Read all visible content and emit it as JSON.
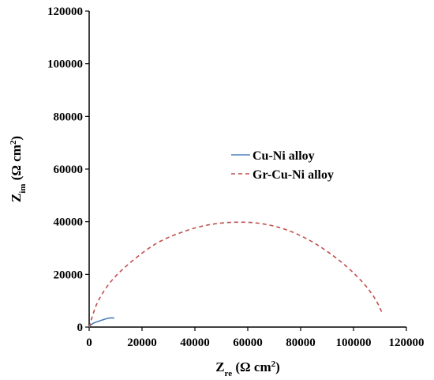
{
  "chart_data": {
    "type": "line",
    "title": "",
    "xlabel": {
      "main": "Z",
      "sub": "re",
      "unit": "(Ω cm",
      "sup": "2",
      "close": ")"
    },
    "ylabel": {
      "main": "Z",
      "sub": "im",
      "unit": "(Ω cm",
      "sup": "2",
      "close": ")"
    },
    "xlim": [
      0,
      120000
    ],
    "ylim": [
      0,
      120000
    ],
    "x_ticks": [
      0,
      20000,
      40000,
      60000,
      80000,
      100000,
      120000
    ],
    "y_ticks": [
      0,
      20000,
      40000,
      60000,
      80000,
      100000,
      120000
    ],
    "x_tick_labels": [
      "0",
      "20000",
      "40000",
      "60000",
      "80000",
      "100000",
      "120000"
    ],
    "y_tick_labels": [
      "0",
      "20000",
      "40000",
      "60000",
      "80000",
      "100000",
      "120000"
    ],
    "grid": false,
    "legend_position": "center-right",
    "series": [
      {
        "name": "Cu-Ni alloy",
        "color": "#4a7ebb",
        "style": "solid",
        "points": [
          [
            0,
            0
          ],
          [
            500,
            700
          ],
          [
            1500,
            1400
          ],
          [
            3000,
            2000
          ],
          [
            5000,
            2700
          ],
          [
            7000,
            3300
          ],
          [
            8500,
            3500
          ],
          [
            9500,
            3400
          ]
        ]
      },
      {
        "name": "Gr-Cu-Ni alloy",
        "color": "#c0504d",
        "style": "dashed",
        "points": [
          [
            0,
            0
          ],
          [
            3000,
            9000
          ],
          [
            8000,
            17000
          ],
          [
            15000,
            24000
          ],
          [
            25000,
            31500
          ],
          [
            35000,
            36000
          ],
          [
            45000,
            38800
          ],
          [
            55000,
            39800
          ],
          [
            65000,
            39300
          ],
          [
            75000,
            36800
          ],
          [
            85000,
            32000
          ],
          [
            95000,
            25000
          ],
          [
            103000,
            17500
          ],
          [
            108000,
            11000
          ],
          [
            111000,
            5000
          ]
        ]
      }
    ]
  }
}
